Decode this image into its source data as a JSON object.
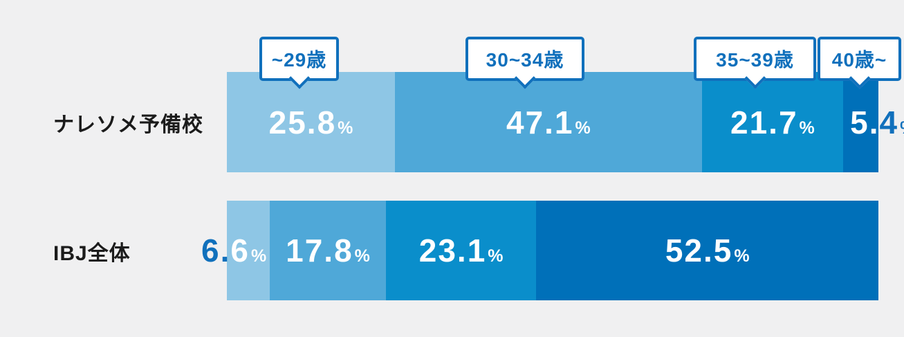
{
  "chart_data": {
    "type": "bar",
    "subtype": "horizontal-stacked",
    "title": "",
    "value_suffix": "%",
    "legend_position": "callouts-above-first-bar",
    "age_groups": [
      {
        "label": "~29歳",
        "color": "#8EC6E5"
      },
      {
        "label": "30~34歳",
        "color": "#4FA8D8"
      },
      {
        "label": "35~39歳",
        "color": "#0A8ECB"
      },
      {
        "label": "40歳~",
        "color": "#0070B9"
      }
    ],
    "rows": [
      {
        "name": "ナレソメ予備校",
        "values": [
          25.8,
          47.1,
          21.7,
          5.4
        ]
      },
      {
        "name": "IBJ全体",
        "values": [
          6.6,
          17.8,
          23.1,
          52.5
        ]
      }
    ],
    "xlim": [
      0,
      100
    ]
  },
  "colors": {
    "background": "#F0F0F1",
    "accent_blue": "#1070BC",
    "value_text": "#FFFFFF",
    "row_label_text": "#1B1B1B"
  }
}
